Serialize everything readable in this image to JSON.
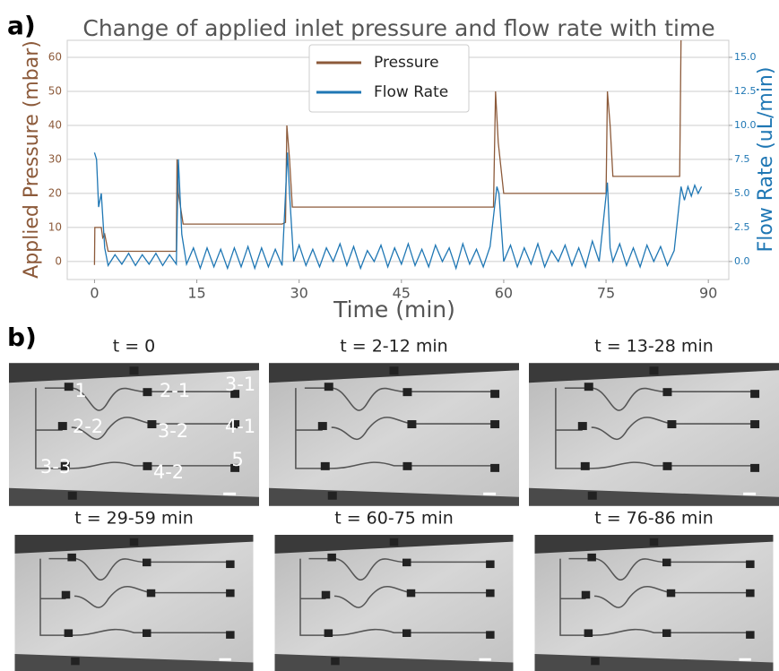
{
  "chart_data": {
    "type": "line",
    "title": "Change of applied inlet pressure and flow rate with time",
    "xlabel": "Time (min)",
    "ylabel": "Applied Pressure (mbar)",
    "y2label": "Flow Rate (uL/min)",
    "xlim": [
      -4,
      93
    ],
    "xticks": [
      0,
      15,
      30,
      45,
      60,
      75,
      90
    ],
    "ylim": [
      -5.3,
      65
    ],
    "yticks": [
      0,
      10,
      20,
      30,
      40,
      50,
      60
    ],
    "y2lim": [
      -1.325,
      16.25
    ],
    "y2ticks": [
      {
        "value": 0,
        "label": "0.0"
      },
      2.5,
      {
        "value": 5,
        "label": "5.0"
      },
      7.5,
      {
        "value": 10,
        "label": "10.0"
      },
      12.5,
      {
        "value": 15,
        "label": "15.0"
      }
    ],
    "grid": true,
    "legend": "upper center",
    "series": [
      {
        "name": "Pressure",
        "color": "#8c5a3a",
        "x": [
          0,
          0.05,
          1,
          1.2,
          1.5,
          2,
          12,
          12.1,
          12.3,
          13,
          27.5,
          28,
          28.2,
          28.6,
          29,
          58.5,
          58.8,
          59.2,
          60,
          75,
          75.2,
          75.6,
          76,
          85.8,
          86
        ],
        "values": [
          -1,
          10,
          10,
          7,
          8,
          3,
          3,
          30,
          20,
          11,
          11,
          11.5,
          40,
          30,
          16,
          16,
          50,
          35,
          20,
          20,
          50,
          40,
          25,
          25,
          65
        ]
      },
      {
        "name": "Flow Rate",
        "color": "#1f77b4",
        "axis": "y2",
        "x": [
          0,
          0.3,
          0.6,
          1,
          1.5,
          2,
          3,
          4,
          5,
          6,
          7,
          8,
          9,
          10,
          11,
          12,
          12.3,
          12.8,
          13.5,
          14.5,
          15.5,
          16.5,
          17.5,
          18.5,
          19.5,
          20.5,
          21.5,
          22.5,
          23.5,
          24.5,
          25.5,
          26.5,
          27.5,
          28.3,
          28.6,
          29.2,
          30,
          31,
          32,
          33,
          34,
          35,
          36,
          37,
          38,
          39,
          40,
          41,
          42,
          43,
          44,
          45,
          46,
          47,
          48,
          49,
          50,
          51,
          52,
          53,
          54,
          55,
          56,
          57,
          58,
          59,
          59.3,
          60,
          61,
          62,
          63,
          64,
          65,
          66,
          67,
          68,
          69,
          70,
          71,
          72,
          73,
          74,
          75.2,
          75.6,
          76,
          77,
          78,
          79,
          80,
          81,
          82,
          83,
          84,
          85,
          86,
          86.5,
          87,
          87.5,
          88,
          88.5,
          89
        ],
        "values": [
          8,
          7.5,
          4,
          5,
          1,
          -0.3,
          0.5,
          -0.2,
          0.6,
          -0.3,
          0.5,
          -0.2,
          0.6,
          -0.3,
          0.5,
          -0.2,
          7.5,
          2,
          -0.2,
          1,
          -0.5,
          1,
          -0.4,
          0.9,
          -0.5,
          1,
          -0.4,
          1.1,
          -0.5,
          1,
          -0.4,
          0.9,
          -0.3,
          8,
          5,
          0,
          1.2,
          -0.3,
          0.9,
          -0.4,
          1,
          0,
          1.3,
          -0.3,
          1.1,
          -0.5,
          0.8,
          0,
          1.2,
          -0.4,
          1,
          -0.2,
          1.3,
          -0.3,
          0.9,
          -0.4,
          1.2,
          0,
          1,
          -0.5,
          1.3,
          -0.2,
          0.9,
          -0.4,
          1.1,
          5.5,
          5,
          0,
          1.2,
          -0.4,
          1,
          -0.2,
          1.3,
          -0.4,
          0.8,
          0,
          1.2,
          -0.3,
          1,
          -0.4,
          1.5,
          0,
          5.8,
          1,
          0,
          1.3,
          -0.3,
          1,
          -0.4,
          1.2,
          0,
          1.1,
          -0.3,
          0.8,
          5.5,
          4.5,
          5.5,
          4.8,
          5.6,
          5,
          5.5
        ]
      }
    ]
  },
  "figure": {
    "panel_a": "a)",
    "panel_b": "b)",
    "images": [
      {
        "title": "t = 0",
        "labels": [
          "1",
          "2-1",
          "3-1",
          "2-2",
          "3-2",
          "4-1",
          "3-3",
          "4-2",
          "5"
        ]
      },
      {
        "title": "t = 2-12 min"
      },
      {
        "title": "t = 13-28 min"
      },
      {
        "title": "t = 29-59 min"
      },
      {
        "title": "t = 60-75 min"
      },
      {
        "title": "t = 76-86 min"
      }
    ]
  }
}
